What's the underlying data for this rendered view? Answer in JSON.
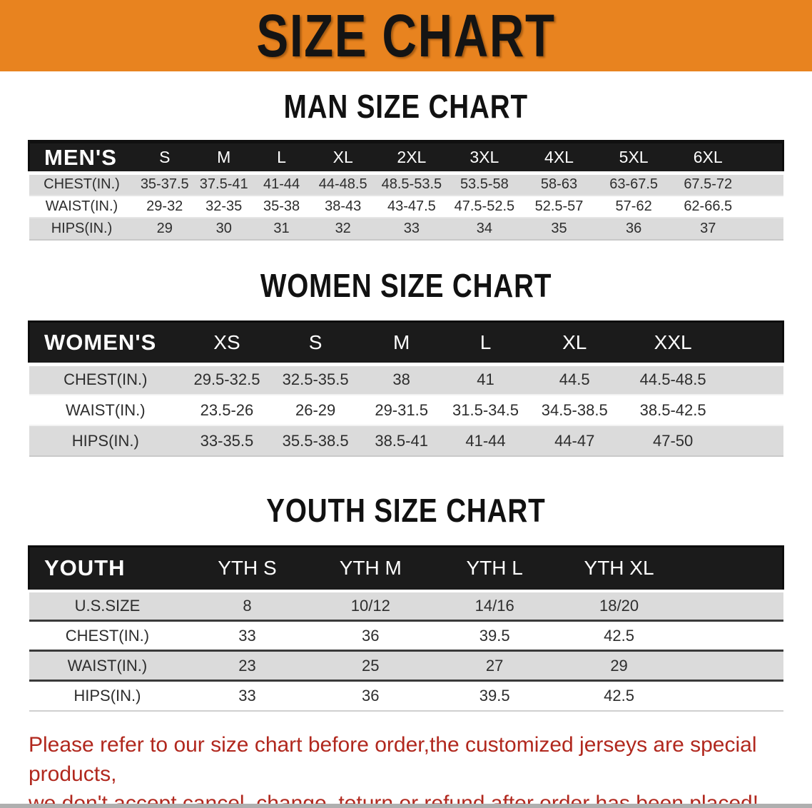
{
  "banner": {
    "title": "SIZE CHART"
  },
  "colors": {
    "banner_bg": "#E8831F",
    "header_bar_bg": "#1B1B1B",
    "row_stripe": "#DBDBDB",
    "table_text": "#2D2D2D",
    "footer_red": "#B1281E"
  },
  "tables": [
    {
      "id": "men",
      "heading": "MAN SIZE CHART",
      "corner": "MEN'S",
      "sizes": [
        "S",
        "M",
        "L",
        "XL",
        "2XL",
        "3XL",
        "4XL",
        "5XL",
        "6XL"
      ],
      "rows": [
        {
          "label": "CHEST(IN.)",
          "values": [
            "35-37.5",
            "37.5-41",
            "41-44",
            "44-48.5",
            "48.5-53.5",
            "53.5-58",
            "58-63",
            "63-67.5",
            "67.5-72"
          ]
        },
        {
          "label": "WAIST(IN.)",
          "values": [
            "29-32",
            "32-35",
            "35-38",
            "38-43",
            "43-47.5",
            "47.5-52.5",
            "52.5-57",
            "57-62",
            "62-66.5"
          ]
        },
        {
          "label": "HIPS(IN.)",
          "values": [
            "29",
            "30",
            "31",
            "32",
            "33",
            "34",
            "35",
            "36",
            "37"
          ]
        }
      ]
    },
    {
      "id": "women",
      "heading": "WOMEN SIZE CHART",
      "corner": "WOMEN'S",
      "sizes": [
        "XS",
        "S",
        "M",
        "L",
        "XL",
        "XXL"
      ],
      "rows": [
        {
          "label": "CHEST(IN.)",
          "values": [
            "29.5-32.5",
            "32.5-35.5",
            "38",
            "41",
            "44.5",
            "44.5-48.5"
          ]
        },
        {
          "label": "WAIST(IN.)",
          "values": [
            "23.5-26",
            "26-29",
            "29-31.5",
            "31.5-34.5",
            "34.5-38.5",
            "38.5-42.5"
          ]
        },
        {
          "label": "HIPS(IN.)",
          "values": [
            "33-35.5",
            "35.5-38.5",
            "38.5-41",
            "41-44",
            "44-47",
            "47-50"
          ]
        }
      ]
    },
    {
      "id": "youth",
      "heading": "YOUTH SIZE CHART",
      "corner": "YOUTH",
      "sizes": [
        "YTH S",
        "YTH M",
        "YTH L",
        "YTH XL"
      ],
      "rows": [
        {
          "label": "U.S.SIZE",
          "values": [
            "8",
            "10/12",
            "14/16",
            "18/20"
          ]
        },
        {
          "label": "CHEST(IN.)",
          "values": [
            "33",
            "36",
            "39.5",
            "42.5"
          ]
        },
        {
          "label": "WAIST(IN.)",
          "values": [
            "23",
            "25",
            "27",
            "29"
          ]
        },
        {
          "label": "HIPS(IN.)",
          "values": [
            "33",
            "36",
            "39.5",
            "42.5"
          ]
        }
      ]
    }
  ],
  "footer": {
    "line1": "Please refer to our size chart before order,the customized jerseys are special products,",
    "line2": "we don't accept cancel, change, teturn or refund after order has been placed!"
  }
}
